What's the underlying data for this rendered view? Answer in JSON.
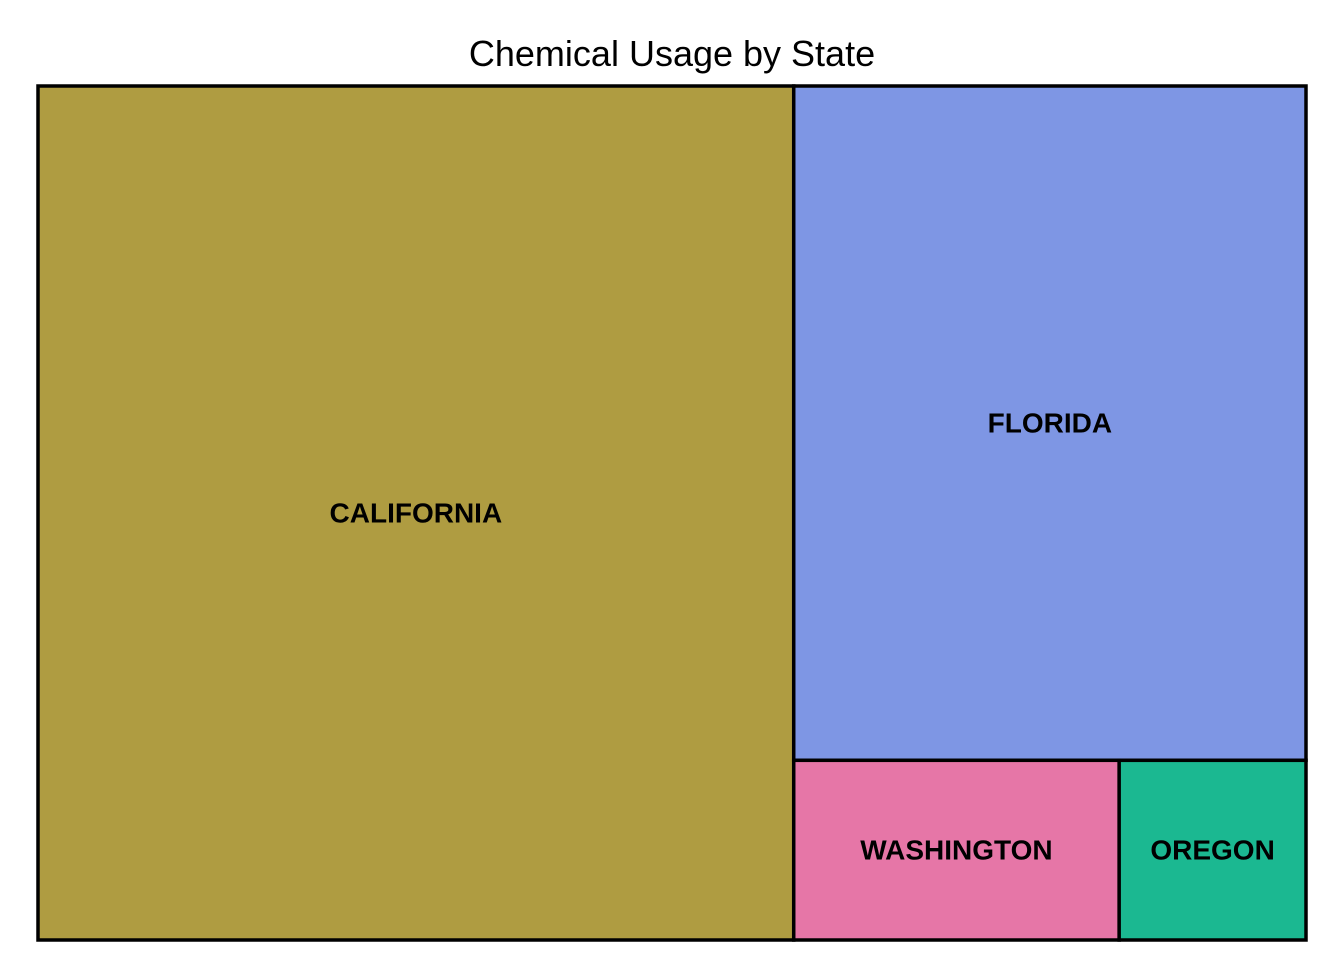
{
  "chart_data": {
    "type": "treemap",
    "title": "Chemical Usage by State",
    "items": [
      {
        "label": "CALIFORNIA",
        "value": 59.6,
        "color": "#AF9C41"
      },
      {
        "label": "FLORIDA",
        "value": 31.9,
        "color": "#7E96E4"
      },
      {
        "label": "WASHINGTON",
        "value": 5.4,
        "color": "#E676A7"
      },
      {
        "label": "OREGON",
        "value": 3.1,
        "color": "#1BB891"
      }
    ]
  }
}
